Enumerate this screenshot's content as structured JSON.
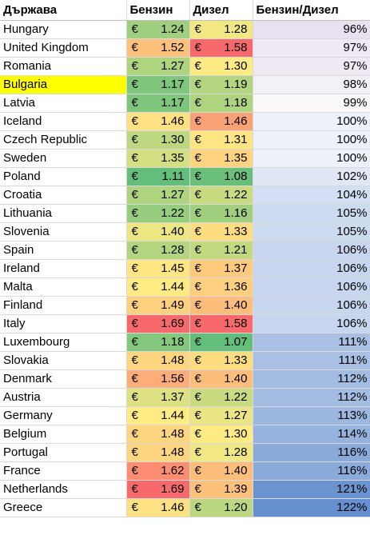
{
  "table": {
    "headers": [
      "Държава",
      "Бензин",
      "Дизел",
      "Бензин/Дизел"
    ],
    "currency_symbol": "€",
    "highlight_color": "#ffff00",
    "rows": [
      {
        "country": "Hungary",
        "petrol": "1.24",
        "diesel": "1.28",
        "ratio": "96%"
      },
      {
        "country": "United Kingdom",
        "petrol": "1.52",
        "diesel": "1.58",
        "ratio": "97%"
      },
      {
        "country": "Romania",
        "petrol": "1.27",
        "diesel": "1.30",
        "ratio": "97%"
      },
      {
        "country": "Bulgaria",
        "petrol": "1.17",
        "diesel": "1.19",
        "ratio": "98%",
        "highlighted": true
      },
      {
        "country": "Latvia",
        "petrol": "1.17",
        "diesel": "1.18",
        "ratio": "99%"
      },
      {
        "country": "Iceland",
        "petrol": "1.46",
        "diesel": "1.46",
        "ratio": "100%"
      },
      {
        "country": "Czech Republic",
        "petrol": "1.30",
        "diesel": "1.31",
        "ratio": "100%"
      },
      {
        "country": "Sweden",
        "petrol": "1.35",
        "diesel": "1.35",
        "ratio": "100%"
      },
      {
        "country": "Poland",
        "petrol": "1.11",
        "diesel": "1.08",
        "ratio": "102%"
      },
      {
        "country": "Croatia",
        "petrol": "1.27",
        "diesel": "1.22",
        "ratio": "104%"
      },
      {
        "country": "Lithuania",
        "petrol": "1.22",
        "diesel": "1.16",
        "ratio": "105%"
      },
      {
        "country": "Slovenia",
        "petrol": "1.40",
        "diesel": "1.33",
        "ratio": "105%"
      },
      {
        "country": "Spain",
        "petrol": "1.28",
        "diesel": "1.21",
        "ratio": "106%"
      },
      {
        "country": "Ireland",
        "petrol": "1.45",
        "diesel": "1.37",
        "ratio": "106%"
      },
      {
        "country": "Malta",
        "petrol": "1.44",
        "diesel": "1.36",
        "ratio": "106%"
      },
      {
        "country": "Finland",
        "petrol": "1.49",
        "diesel": "1.40",
        "ratio": "106%"
      },
      {
        "country": "Italy",
        "petrol": "1.69",
        "diesel": "1.58",
        "ratio": "106%"
      },
      {
        "country": "Luxembourg",
        "petrol": "1.18",
        "diesel": "1.07",
        "ratio": "111%"
      },
      {
        "country": "Slovakia",
        "petrol": "1.48",
        "diesel": "1.33",
        "ratio": "111%"
      },
      {
        "country": "Denmark",
        "petrol": "1.56",
        "diesel": "1.40",
        "ratio": "112%"
      },
      {
        "country": "Austria",
        "petrol": "1.37",
        "diesel": "1.22",
        "ratio": "112%"
      },
      {
        "country": "Germany",
        "petrol": "1.44",
        "diesel": "1.27",
        "ratio": "113%"
      },
      {
        "country": "Belgium",
        "petrol": "1.48",
        "diesel": "1.30",
        "ratio": "114%"
      },
      {
        "country": "Portugal",
        "petrol": "1.48",
        "diesel": "1.28",
        "ratio": "116%"
      },
      {
        "country": "France",
        "petrol": "1.62",
        "diesel": "1.40",
        "ratio": "116%"
      },
      {
        "country": "Netherlands",
        "petrol": "1.69",
        "diesel": "1.39",
        "ratio": "121%"
      },
      {
        "country": "Greece",
        "petrol": "1.46",
        "diesel": "1.20",
        "ratio": "122%"
      }
    ]
  }
}
